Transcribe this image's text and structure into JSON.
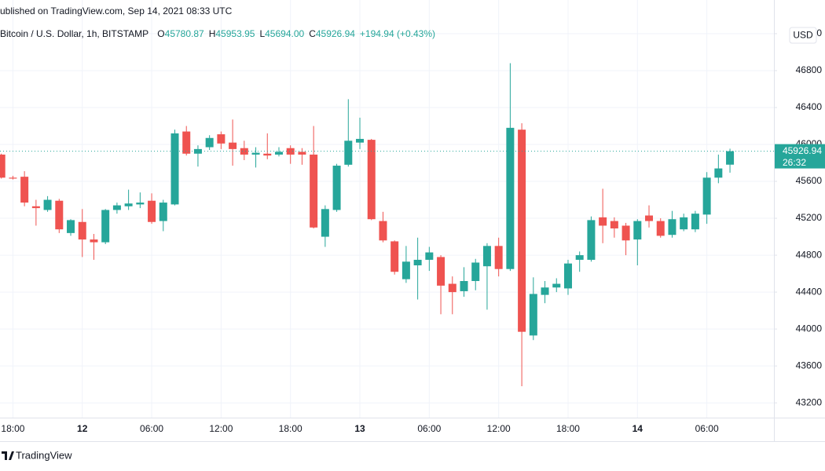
{
  "published": "ublished on TradingView.com, Sep 14, 2021 08:33 UTC",
  "legend": {
    "symbol": "Bitcoin / U.S. Dollar, 1h, BITSTAMP",
    "fields": [
      {
        "key": "O",
        "value": "45780.87"
      },
      {
        "key": "H",
        "value": "45953.95"
      },
      {
        "key": "L",
        "value": "45694.00"
      },
      {
        "key": "C",
        "value": "45926.94"
      }
    ],
    "change": "+194.94 (+0.43%)"
  },
  "currency": "USD",
  "countdown": "26:32",
  "footer": "TradingView",
  "chart_data": {
    "type": "candlestick",
    "up_color": "#26a69a",
    "down_color": "#ef5350",
    "grid": true,
    "categories": [
      null,
      "18:00",
      null,
      null,
      null,
      null,
      null,
      "12",
      null,
      null,
      null,
      null,
      null,
      "06:00",
      null,
      null,
      null,
      null,
      null,
      "12:00",
      null,
      null,
      null,
      null,
      null,
      "18:00",
      null,
      null,
      null,
      null,
      null,
      "13",
      null,
      null,
      null,
      null,
      null,
      "06:00",
      null,
      null,
      null,
      null,
      null,
      "12:00",
      null,
      null,
      null,
      null,
      null,
      "18:00",
      null,
      null,
      null,
      null,
      null,
      "14",
      null,
      null,
      null,
      null,
      null,
      "06:00",
      null,
      null
    ],
    "open": [
      45890,
      45640,
      45650,
      45330,
      45290,
      45390,
      45040,
      45160,
      44970,
      44940,
      45290,
      45330,
      45350,
      45390,
      45170,
      45350,
      46140,
      45900,
      45970,
      46110,
      46020,
      45960,
      45890,
      45900,
      45890,
      45960,
      45920,
      45890,
      45000,
      45290,
      45780,
      46020,
      46050,
      45170,
      44950,
      44540,
      44690,
      44750,
      44780,
      44490,
      44410,
      44520,
      44680,
      44900,
      44650,
      46160,
      43930,
      44370,
      44450,
      44440,
      44750,
      44750,
      45210,
      45170,
      45120,
      44970,
      45230,
      45170,
      45020,
      45080,
      45080,
      45240,
      45640,
      45780.87
    ],
    "high": [
      45900,
      45660,
      45710,
      45400,
      45440,
      45410,
      45190,
      45300,
      45030,
      45300,
      45370,
      45510,
      45480,
      45470,
      45400,
      46160,
      46200,
      45990,
      46100,
      46140,
      46270,
      46040,
      45970,
      46120,
      45970,
      45990,
      45960,
      46200,
      45340,
      45790,
      46490,
      46290,
      46060,
      45270,
      44960,
      44900,
      44990,
      44890,
      44800,
      44570,
      44670,
      44760,
      44930,
      44990,
      46880,
      46230,
      44560,
      44520,
      44550,
      44750,
      44840,
      45220,
      45520,
      45210,
      45150,
      45190,
      45340,
      45200,
      45280,
      45250,
      45280,
      45700,
      45890,
      45953.95
    ],
    "low": [
      45630,
      45620,
      45330,
      45120,
      45270,
      45040,
      45010,
      44780,
      44750,
      44920,
      45250,
      45290,
      45310,
      45140,
      45060,
      45340,
      45880,
      45760,
      45940,
      45950,
      45770,
      45830,
      45750,
      45840,
      45870,
      45790,
      45780,
      45090,
      44890,
      45270,
      45760,
      45950,
      45180,
      44940,
      44590,
      44500,
      44320,
      44630,
      44160,
      44160,
      44350,
      44420,
      44210,
      44570,
      44630,
      43380,
      43880,
      44280,
      44400,
      44370,
      44620,
      44730,
      44930,
      44990,
      44800,
      44690,
      45100,
      44990,
      44990,
      45060,
      45050,
      45140,
      45580,
      45694
    ],
    "close": [
      45640,
      45630,
      45370,
      45310,
      45400,
      45080,
      45180,
      44970,
      44940,
      45290,
      45340,
      45360,
      45370,
      45160,
      45370,
      46120,
      45900,
      45950,
      46070,
      46010,
      45950,
      45890,
      45910,
      45880,
      45920,
      45890,
      45890,
      45100,
      45300,
      45770,
      46040,
      46060,
      45190,
      44960,
      44620,
      44730,
      44750,
      44830,
      44470,
      44400,
      44520,
      44720,
      44900,
      44650,
      46180,
      43970,
      44380,
      44450,
      44490,
      44710,
      44800,
      45180,
      45120,
      45090,
      44960,
      45170,
      45170,
      45010,
      45190,
      45210,
      45250,
      45640,
      45740,
      45926.94
    ],
    "ylim": [
      43040,
      47565
    ],
    "yticks": [
      43200,
      43600,
      44000,
      44400,
      44800,
      45200,
      45600,
      46000,
      46400,
      46800,
      47200
    ]
  }
}
